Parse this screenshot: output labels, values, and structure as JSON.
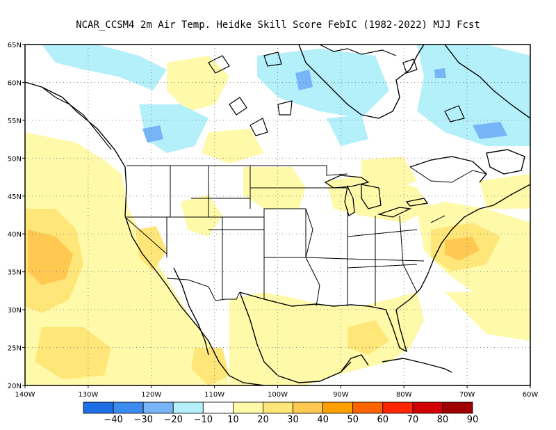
{
  "title": "NCAR_CCSM4  2m Air Temp. Heidke Skill Score FebIC (1982-2022) MJJ Fcst",
  "map": {
    "lat_labels": [
      "65N",
      "60N",
      "55N",
      "50N",
      "45N",
      "40N",
      "35N",
      "30N",
      "25N",
      "20N"
    ],
    "lon_labels": [
      "140W",
      "130W",
      "120W",
      "110W",
      "100W",
      "90W",
      "80W",
      "70W",
      "60W"
    ],
    "lat_range": [
      20,
      65
    ],
    "lon_range": [
      -140,
      -60
    ],
    "grid": "dotted every 5 degrees",
    "projection": "equirectangular (lat/lon)"
  },
  "colorbar": {
    "labels": [
      "-40",
      "-30",
      "-20",
      "-10",
      "10",
      "20",
      "30",
      "40",
      "50",
      "60",
      "70",
      "80",
      "90"
    ],
    "colors": [
      "#1e6ee6",
      "#3c8cf0",
      "#78b4f8",
      "#b4f0fa",
      "#ffffff",
      "#fffaaa",
      "#ffe678",
      "#ffc850",
      "#ffa000",
      "#ff6400",
      "#ff2800",
      "#d20000",
      "#a00000"
    ]
  }
}
